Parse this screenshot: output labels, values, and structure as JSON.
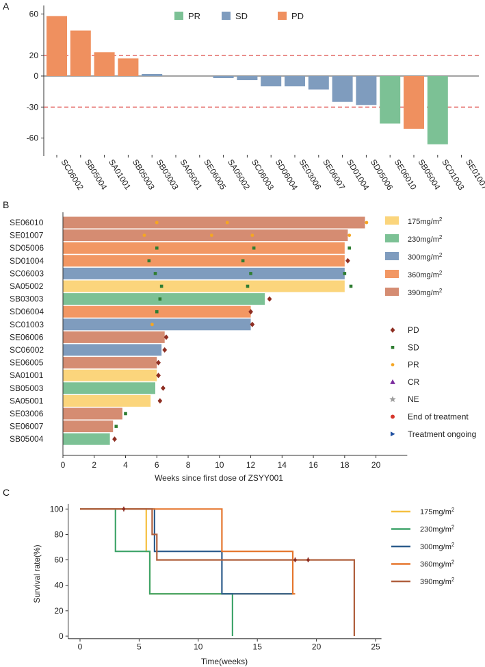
{
  "chart_data": [
    {
      "type": "bar",
      "panel_label": "A",
      "title": "",
      "legend": [
        "PR",
        "SD",
        "PD"
      ],
      "colors": {
        "PR": "#7cc195",
        "SD": "#7f9cbe",
        "PD": "#ef905f",
        "ref_line": "#d9302c",
        "zero": "#444444"
      },
      "categories": [
        "SC06002",
        "SB05004",
        "SA01001",
        "SB05003",
        "SB03003",
        "SA05001",
        "SE06005",
        "SA05002",
        "SC06003",
        "SD06004",
        "SE03006",
        "SE06007",
        "SD01004",
        "SD05006",
        "SE06010",
        "SB05004",
        "SC01003",
        "SE01007"
      ],
      "values": [
        58,
        44,
        23,
        17,
        2,
        0,
        0,
        -2,
        -4,
        -10,
        -10,
        -13,
        -25,
        -28,
        -46,
        -51,
        -66,
        0
      ],
      "response": [
        "PD",
        "PD",
        "PD",
        "PD",
        "SD",
        "SD",
        "SD",
        "SD",
        "SD",
        "SD",
        "SD",
        "SD",
        "SD",
        "SD",
        "PR",
        "PD",
        "PR",
        "PR"
      ],
      "ylim": [
        -70,
        65
      ],
      "yticks": [
        60,
        20,
        0,
        -30,
        -60
      ],
      "reference_lines": [
        20,
        -30
      ],
      "xlabel": "",
      "ylabel": ""
    },
    {
      "type": "bar",
      "orientation": "horizontal",
      "panel_label": "B",
      "xlabel": "Weeks since first dose of ZSYY001",
      "xlim": [
        0,
        22
      ],
      "xticks": [
        0,
        2,
        4,
        6,
        8,
        10,
        12,
        14,
        16,
        18,
        20
      ],
      "dose_legend": [
        {
          "label": "175mg/m",
          "sup": "2",
          "color": "#fbd57c"
        },
        {
          "label": "230mg/m",
          "sup": "2",
          "color": "#7cc195"
        },
        {
          "label": "300mg/m",
          "sup": "2",
          "color": "#7f9cbe"
        },
        {
          "label": "360mg/m",
          "sup": "2",
          "color": "#f29763"
        },
        {
          "label": "390mg/m",
          "sup": "2",
          "color": "#d58c72"
        }
      ],
      "marker_legend": [
        {
          "label": "PD",
          "symbol": "diamond",
          "color": "#8e2e22"
        },
        {
          "label": "SD",
          "symbol": "square",
          "color": "#2f7d32"
        },
        {
          "label": "PR",
          "symbol": "circle",
          "color": "#f5a623"
        },
        {
          "label": "CR",
          "symbol": "triangle",
          "color": "#7b2c9e"
        },
        {
          "label": "NE",
          "symbol": "star",
          "color": "#9e9e9e"
        },
        {
          "label": "End of treatment",
          "symbol": "dot",
          "color": "#d6372c"
        },
        {
          "label": "Treatment ongoing",
          "symbol": "arrow",
          "color": "#1f4fa0"
        }
      ],
      "rows": [
        {
          "id": "SE06010",
          "dose": 4,
          "weeks": 19.3,
          "markers": [
            [
              "PR",
              6.0
            ],
            [
              "PR",
              10.5
            ],
            [
              "PR",
              19.4
            ]
          ]
        },
        {
          "id": "SE01007",
          "dose": 4,
          "weeks": 18.2,
          "markers": [
            [
              "PR",
              5.2
            ],
            [
              "PR",
              9.5
            ],
            [
              "PR",
              12.1
            ],
            [
              "PR",
              18.3
            ]
          ]
        },
        {
          "id": "SD05006",
          "dose": 3,
          "weeks": 18.0,
          "markers": [
            [
              "SD",
              6.0
            ],
            [
              "SD",
              12.2
            ],
            [
              "SD",
              18.3
            ]
          ]
        },
        {
          "id": "SD01004",
          "dose": 3,
          "weeks": 18.0,
          "markers": [
            [
              "SD",
              5.5
            ],
            [
              "SD",
              11.5
            ],
            [
              "PD",
              18.2
            ]
          ]
        },
        {
          "id": "SC06003",
          "dose": 2,
          "weeks": 18.0,
          "markers": [
            [
              "SD",
              5.9
            ],
            [
              "SD",
              12.0
            ],
            [
              "SD",
              18.0
            ]
          ]
        },
        {
          "id": "SA05002",
          "dose": 0,
          "weeks": 18.0,
          "markers": [
            [
              "SD",
              6.3
            ],
            [
              "SD",
              11.8
            ],
            [
              "SD",
              18.4
            ]
          ]
        },
        {
          "id": "SB03003",
          "dose": 1,
          "weeks": 12.9,
          "markers": [
            [
              "SD",
              6.2
            ],
            [
              "PD",
              13.2
            ]
          ]
        },
        {
          "id": "SD06004",
          "dose": 3,
          "weeks": 12.0,
          "markers": [
            [
              "SD",
              6.0
            ],
            [
              "PD",
              12.0
            ]
          ]
        },
        {
          "id": "SC01003",
          "dose": 2,
          "weeks": 12.0,
          "markers": [
            [
              "PR",
              5.7
            ],
            [
              "PD",
              12.1
            ]
          ]
        },
        {
          "id": "SE06006",
          "dose": 4,
          "weeks": 6.5,
          "markers": [
            [
              "PD",
              6.6
            ]
          ]
        },
        {
          "id": "SC06002",
          "dose": 2,
          "weeks": 6.3,
          "markers": [
            [
              "PD",
              6.5
            ]
          ]
        },
        {
          "id": "SE06005",
          "dose": 4,
          "weeks": 6.0,
          "markers": [
            [
              "PD",
              6.1
            ]
          ]
        },
        {
          "id": "SA01001",
          "dose": 0,
          "weeks": 6.0,
          "markers": [
            [
              "PD",
              6.1
            ]
          ]
        },
        {
          "id": "SB05003",
          "dose": 1,
          "weeks": 5.9,
          "markers": [
            [
              "PD",
              6.4
            ]
          ]
        },
        {
          "id": "SA05001",
          "dose": 0,
          "weeks": 5.6,
          "markers": [
            [
              "PD",
              6.2
            ]
          ]
        },
        {
          "id": "SE03006",
          "dose": 4,
          "weeks": 3.8,
          "markers": [
            [
              "SD",
              4.0
            ]
          ]
        },
        {
          "id": "SE06007",
          "dose": 4,
          "weeks": 3.2,
          "markers": [
            [
              "SD",
              3.4
            ]
          ]
        },
        {
          "id": "SB05004",
          "dose": 1,
          "weeks": 3.0,
          "markers": [
            [
              "PD",
              3.3
            ]
          ]
        }
      ]
    },
    {
      "type": "line",
      "step": true,
      "panel_label": "C",
      "xlabel": "Time(weeks)",
      "ylabel": "Survival rate(%)",
      "xlim": [
        -1,
        25.5
      ],
      "ylim": [
        -2,
        104
      ],
      "xticks": [
        0,
        5,
        10,
        15,
        20,
        25
      ],
      "yticks": [
        0,
        20,
        40,
        60,
        80,
        100
      ],
      "series": [
        {
          "name": "175mg/m",
          "sup": "2",
          "color": "#f5c040",
          "points": [
            [
              0,
              100
            ],
            [
              5.6,
              100
            ],
            [
              5.6,
              66.7
            ],
            [
              5.9,
              66.7
            ],
            [
              5.9,
              33.3
            ],
            [
              18.1,
              33.3
            ]
          ],
          "censor": []
        },
        {
          "name": "230mg/m",
          "sup": "2",
          "color": "#3fa46a",
          "points": [
            [
              0,
              100
            ],
            [
              3,
              100
            ],
            [
              3,
              66.7
            ],
            [
              5.9,
              66.7
            ],
            [
              5.9,
              33.3
            ],
            [
              12.9,
              33.3
            ],
            [
              12.9,
              0
            ]
          ],
          "censor": []
        },
        {
          "name": "300mg/m",
          "sup": "2",
          "color": "#2d5c8c",
          "points": [
            [
              0,
              100
            ],
            [
              6.3,
              100
            ],
            [
              6.3,
              66.7
            ],
            [
              12,
              66.7
            ],
            [
              12,
              33.3
            ],
            [
              18,
              33.3
            ]
          ],
          "censor": []
        },
        {
          "name": "360mg/m",
          "sup": "2",
          "color": "#e5752c",
          "points": [
            [
              0,
              100
            ],
            [
              12,
              100
            ],
            [
              12,
              66.7
            ],
            [
              18,
              66.7
            ],
            [
              18,
              33.3
            ],
            [
              18.2,
              33.3
            ]
          ],
          "censor": []
        },
        {
          "name": "390mg/m",
          "sup": "2",
          "color": "#b0603e",
          "points": [
            [
              0,
              100
            ],
            [
              6.1,
              100
            ],
            [
              6.1,
              80
            ],
            [
              6.5,
              80
            ],
            [
              6.5,
              60
            ],
            [
              23.2,
              60
            ],
            [
              23.2,
              0
            ]
          ],
          "censor": [
            [
              3.7,
              100
            ],
            [
              18.2,
              60
            ],
            [
              19.3,
              60
            ]
          ]
        }
      ]
    }
  ]
}
